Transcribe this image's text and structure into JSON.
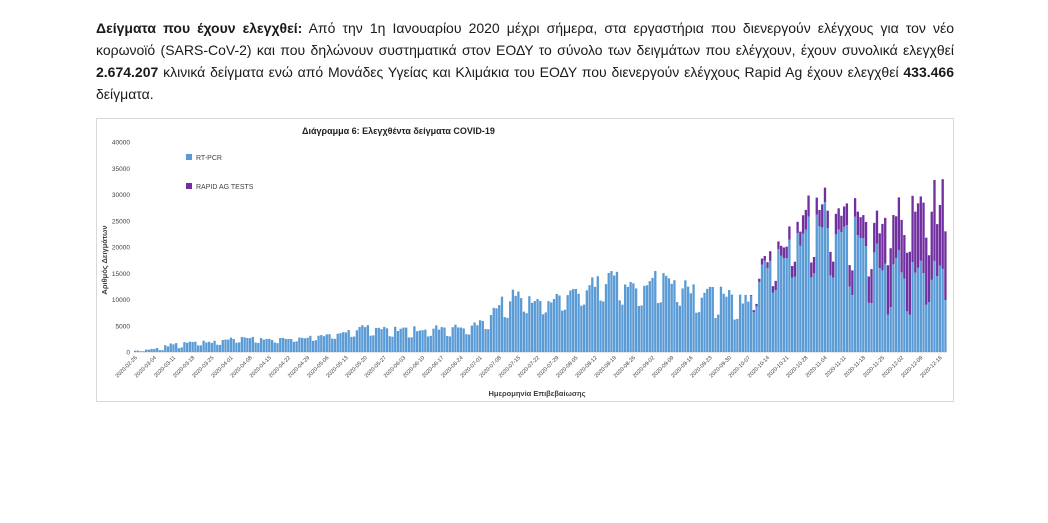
{
  "paragraph": {
    "lead": "Δείγματα που έχουν ελεγχθεί:",
    "text1": " Από την 1η Ιανουαρίου 2020 μέχρι σήμερα, στα εργαστήρια που διενεργούν ελέγχους για τον νέο κορωνοϊό (SARS-CoV-2) και που δηλώνουν συστηματικά στον ΕΟΔΥ το σύνολο των δειγμάτων που ελέγχουν, έχουν συνολικά ελεγχθεί ",
    "pcr_total": "2.674.207",
    "text2": " κλινικά δείγματα ενώ από Μονάδες Υγείας και Κλιμάκια του ΕΟΔΥ που διενεργούν ελέγχους Rapid Ag έχουν ελεγχθεί ",
    "rapid_total": "433.466",
    "text3": " δείγματα."
  },
  "colors": {
    "pcr": "#5b9bd5",
    "rapid": "#7030a0",
    "axis": "#bfbfbf",
    "text": "#404040"
  },
  "chart_data": {
    "type": "bar",
    "stacked": true,
    "title": "Διάγραμμα 6: Ελεγχθέντα δείγματα COVID-19",
    "xlabel": "Ημερομηνία Επιβεβαίωσης",
    "ylabel": "Αριθμός Δειγμάτων",
    "ylim": [
      0,
      40000
    ],
    "yticks": [
      0,
      5000,
      10000,
      15000,
      20000,
      25000,
      30000,
      35000,
      40000
    ],
    "legend_position": "top-left",
    "x_start": "2020-02-26",
    "x_end": "2020-12-18",
    "xtick_labels": [
      "2020-02-26",
      "2020-03-04",
      "2020-03-11",
      "2020-03-18",
      "2020-03-25",
      "2020-04-01",
      "2020-04-08",
      "2020-04-15",
      "2020-04-22",
      "2020-04-29",
      "2020-05-06",
      "2020-05-13",
      "2020-05-20",
      "2020-05-27",
      "2020-06-03",
      "2020-06-10",
      "2020-06-17",
      "2020-06-24",
      "2020-07-01",
      "2020-07-08",
      "2020-07-15",
      "2020-07-22",
      "2020-07-29",
      "2020-08-05",
      "2020-08-12",
      "2020-08-19",
      "2020-08-26",
      "2020-09-02",
      "2020-09-09",
      "2020-09-16",
      "2020-09-23",
      "2020-09-30",
      "2020-10-07",
      "2020-10-14",
      "2020-10-21",
      "2020-10-28",
      "2020-11-04",
      "2020-11-11",
      "2020-11-18",
      "2020-11-25",
      "2020-12-02",
      "2020-12-09",
      "2020-12-16"
    ],
    "weekly_points": [
      "2020-02-26",
      "2020-03-04",
      "2020-03-11",
      "2020-03-18",
      "2020-03-25",
      "2020-04-01",
      "2020-04-08",
      "2020-04-15",
      "2020-04-22",
      "2020-04-29",
      "2020-05-06",
      "2020-05-13",
      "2020-05-20",
      "2020-05-27",
      "2020-06-03",
      "2020-06-10",
      "2020-06-17",
      "2020-06-24",
      "2020-07-01",
      "2020-07-08",
      "2020-07-15",
      "2020-07-22",
      "2020-07-29",
      "2020-08-05",
      "2020-08-12",
      "2020-08-19",
      "2020-08-26",
      "2020-09-02",
      "2020-09-09",
      "2020-09-16",
      "2020-09-23",
      "2020-09-30",
      "2020-10-07",
      "2020-10-14",
      "2020-10-21",
      "2020-10-28",
      "2020-11-04",
      "2020-11-11",
      "2020-11-18",
      "2020-11-25",
      "2020-12-02",
      "2020-12-09",
      "2020-12-16",
      "2020-12-18"
    ],
    "weekly_pcr_peak": [
      300,
      700,
      1800,
      2400,
      2200,
      2900,
      3100,
      2700,
      2900,
      3100,
      3700,
      4600,
      5300,
      4800,
      5000,
      4900,
      5300,
      5300,
      6200,
      10400,
      12600,
      10500,
      11400,
      13100,
      14500,
      17000,
      14300,
      15800,
      15600,
      13800,
      12500,
      13100,
      11800,
      19900,
      22300,
      25500,
      28900,
      25000,
      26500,
      21200,
      19800,
      17800,
      17300,
      16700
    ],
    "weekly_pcr_low": [
      100,
      200,
      500,
      1200,
      1100,
      1500,
      1800,
      1600,
      1800,
      2000,
      2300,
      2600,
      3000,
      2800,
      2700,
      2700,
      2900,
      3000,
      3300,
      5600,
      7200,
      6800,
      7300,
      8300,
      8900,
      9300,
      8600,
      8900,
      9100,
      8000,
      6100,
      6400,
      5300,
      11000,
      12100,
      14000,
      13200,
      11500,
      9700,
      7300,
      6100,
      7600,
      8800,
      9800
    ],
    "weekly_rapid_peak": [
      0,
      0,
      0,
      0,
      0,
      0,
      0,
      0,
      0,
      0,
      0,
      0,
      0,
      0,
      0,
      0,
      0,
      0,
      0,
      0,
      0,
      0,
      0,
      0,
      0,
      0,
      0,
      0,
      0,
      0,
      0,
      0,
      0,
      1700,
      2700,
      4100,
      4600,
      4300,
      6300,
      10600,
      12600,
      13800,
      16200,
      19100
    ]
  }
}
